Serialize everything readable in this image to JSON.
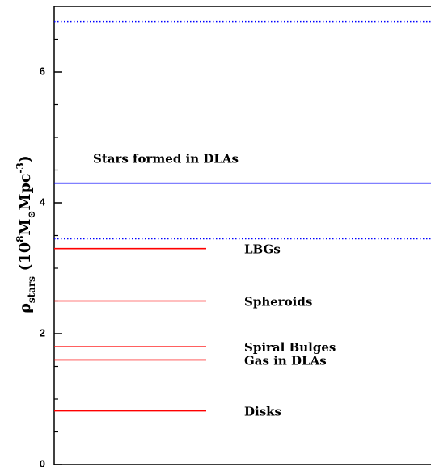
{
  "chart_data": {
    "type": "hline",
    "ylim": [
      0,
      7
    ],
    "yticks": [
      0,
      2,
      4,
      6
    ],
    "yminor_ticks": [
      0.5,
      1,
      1.5,
      2.5,
      3,
      3.5,
      4.5,
      5,
      5.5,
      6.5
    ],
    "y_label": [
      {
        "text": "ρ"
      },
      {
        "text": "stars",
        "shift": "sub"
      },
      {
        "text": " (10"
      },
      {
        "text": "8",
        "shift": "super"
      },
      {
        "text": "M"
      },
      {
        "text": "⊙",
        "shift": "sub"
      },
      {
        "text": "Mpc"
      },
      {
        "text": "-3",
        "shift": "super"
      },
      {
        "text": ")"
      }
    ],
    "lines": [
      {
        "value": 6.77,
        "color": "#0000ff",
        "style": "dotted",
        "span": "full"
      },
      {
        "value": 4.3,
        "color": "#0000ff",
        "style": "solid",
        "span": "full",
        "label": "Stars formed in DLAs",
        "label_place": "above"
      },
      {
        "value": 3.45,
        "color": "#0000ff",
        "style": "dotted",
        "span": "full"
      },
      {
        "value": 3.3,
        "color": "#ff0000",
        "style": "solid",
        "span": "partial",
        "label": "LBGs",
        "label_place": "right"
      },
      {
        "value": 2.5,
        "color": "#ff0000",
        "style": "solid",
        "span": "partial",
        "label": "Spheroids",
        "label_place": "right"
      },
      {
        "value": 1.8,
        "color": "#ff0000",
        "style": "solid",
        "span": "partial",
        "label": "Spiral Bulges",
        "label_place": "right"
      },
      {
        "value": 1.6,
        "color": "#ff0000",
        "style": "solid",
        "span": "partial",
        "label": "Gas in DLAs",
        "label_place": "right"
      },
      {
        "value": 0.82,
        "color": "#ff0000",
        "style": "solid",
        "span": "partial",
        "label": "Disks",
        "label_place": "right"
      }
    ]
  }
}
